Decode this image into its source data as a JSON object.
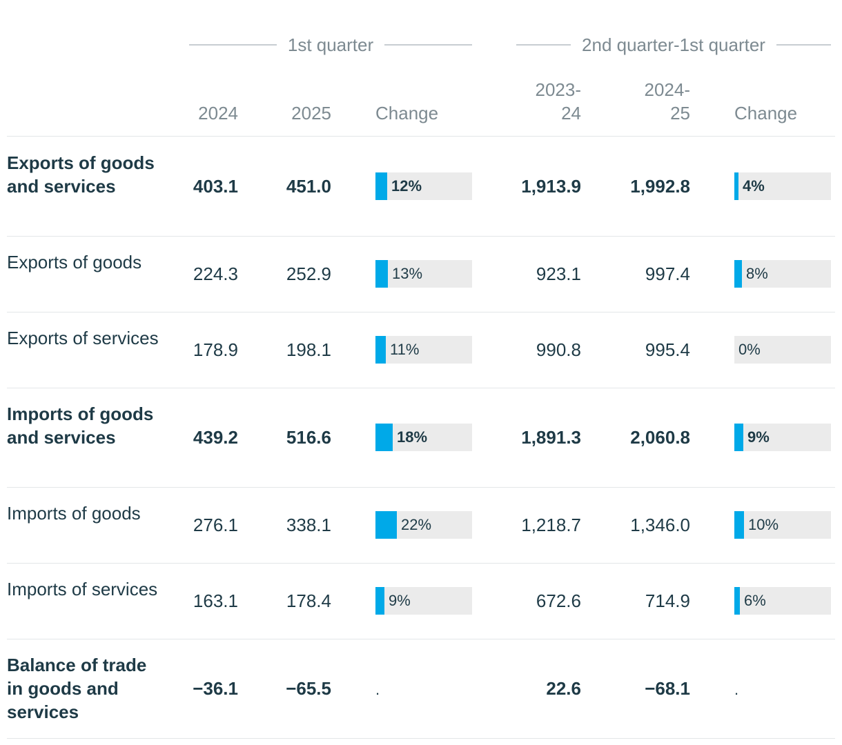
{
  "chart_data": {
    "type": "table",
    "groups": [
      "1st quarter",
      "2nd quarter-1st quarter"
    ],
    "columns": [
      "2024",
      "2025",
      "Change",
      "2023-\n24",
      "2024-\n25",
      "Change"
    ],
    "rows": [
      {
        "label": "Exports of goods and services",
        "bold": true,
        "q1_2024": "403.1",
        "q1_2025": "451.0",
        "q1_change": "12%",
        "q1_change_value": 12,
        "ann_2324": "1,913.9",
        "ann_2425": "1,992.8",
        "ann_change": "4%",
        "ann_change_value": 4
      },
      {
        "label": "Exports of goods",
        "bold": false,
        "q1_2024": "224.3",
        "q1_2025": "252.9",
        "q1_change": "13%",
        "q1_change_value": 13,
        "ann_2324": "923.1",
        "ann_2425": "997.4",
        "ann_change": "8%",
        "ann_change_value": 8
      },
      {
        "label": "Exports of services",
        "bold": false,
        "q1_2024": "178.9",
        "q1_2025": "198.1",
        "q1_change": "11%",
        "q1_change_value": 11,
        "ann_2324": "990.8",
        "ann_2425": "995.4",
        "ann_change": "0%",
        "ann_change_value": 0
      },
      {
        "label": "Imports of goods and services",
        "bold": true,
        "q1_2024": "439.2",
        "q1_2025": "516.6",
        "q1_change": "18%",
        "q1_change_value": 18,
        "ann_2324": "1,891.3",
        "ann_2425": "2,060.8",
        "ann_change": "9%",
        "ann_change_value": 9
      },
      {
        "label": "Imports of goods",
        "bold": false,
        "q1_2024": "276.1",
        "q1_2025": "338.1",
        "q1_change": "22%",
        "q1_change_value": 22,
        "ann_2324": "1,218.7",
        "ann_2425": "1,346.0",
        "ann_change": "10%",
        "ann_change_value": 10
      },
      {
        "label": "Imports of services",
        "bold": false,
        "q1_2024": "163.1",
        "q1_2025": "178.4",
        "q1_change": "9%",
        "q1_change_value": 9,
        "ann_2324": "672.6",
        "ann_2425": "714.9",
        "ann_change": "6%",
        "ann_change_value": 6
      },
      {
        "label": "Balance of trade in goods and services",
        "bold": true,
        "q1_2024": "−36.1",
        "q1_2025": "−65.5",
        "q1_change": ".",
        "q1_change_value": null,
        "ann_2324": "22.6",
        "ann_2425": "−68.1",
        "ann_change": ".",
        "ann_change_value": null
      }
    ],
    "bar_max_percent": 100
  },
  "colors": {
    "bar_fill": "#00a9e8",
    "bar_track": "#ebebeb",
    "text": "#1e3a46",
    "header_text": "#7d8a91",
    "rule": "#e3e6e8"
  }
}
